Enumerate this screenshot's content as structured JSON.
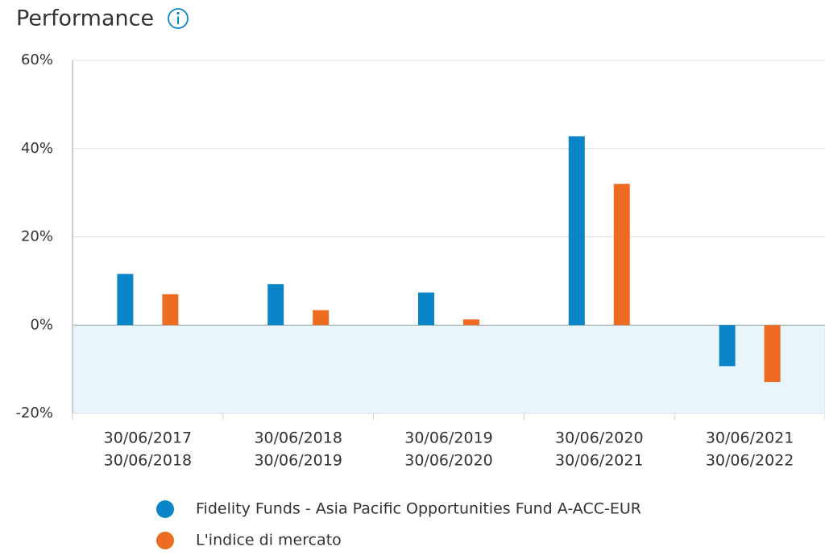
{
  "chart_data": {
    "type": "bar",
    "title": "Performance",
    "categories": [
      [
        "30/06/2017",
        "30/06/2018"
      ],
      [
        "30/06/2018",
        "30/06/2019"
      ],
      [
        "30/06/2019",
        "30/06/2020"
      ],
      [
        "30/06/2020",
        "30/06/2021"
      ],
      [
        "30/06/2021",
        "30/06/2022"
      ]
    ],
    "series": [
      {
        "name": "Fidelity Funds - Asia Pacific Opportunities Fund A-ACC-EUR",
        "color": "#0a85c7",
        "values": [
          11.6,
          9.3,
          7.4,
          42.8,
          -9.3
        ]
      },
      {
        "name": "L'indice di mercato",
        "color": "#ee6c22",
        "values": [
          7.0,
          3.4,
          1.3,
          32.0,
          -12.9
        ]
      }
    ],
    "ylim": [
      -20,
      60
    ],
    "yticks": [
      {
        "value": -20,
        "label": "-20%"
      },
      {
        "value": 0,
        "label": "0%"
      },
      {
        "value": 20,
        "label": "20%"
      },
      {
        "value": 40,
        "label": "40%"
      },
      {
        "value": 60,
        "label": "60%"
      }
    ],
    "grid": true,
    "legend": "bottom"
  }
}
